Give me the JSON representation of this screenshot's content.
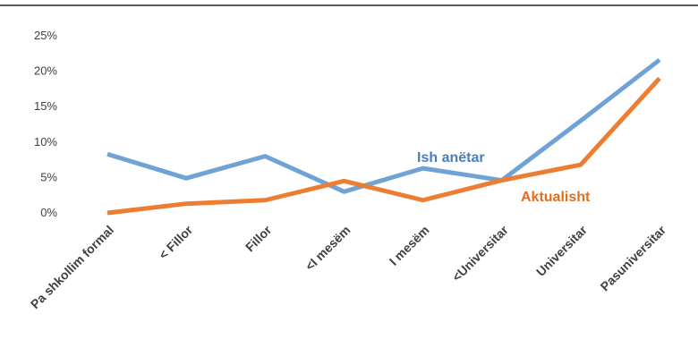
{
  "chart_data": {
    "type": "line",
    "title": "",
    "xlabel": "",
    "ylabel": "",
    "categories": [
      "Pa shkollim formal",
      "< Fillor",
      "Fillor",
      "<I mesëm",
      "I mesëm",
      "<Universitar",
      "Universitar",
      "Pasuniversitar"
    ],
    "ylim": [
      0,
      25
    ],
    "yticks": [
      0,
      5,
      10,
      15,
      20,
      25
    ],
    "ytick_labels": [
      "0%",
      "5%",
      "10%",
      "15%",
      "20%",
      "25%"
    ],
    "grid": false,
    "series": [
      {
        "name": "Ish anëtar",
        "color": "#6FA3D6",
        "label_color": "#4A7EBB",
        "values": [
          8.3,
          4.9,
          8.0,
          3.0,
          6.3,
          4.6,
          13.0,
          21.6
        ]
      },
      {
        "name": "Aktualisht",
        "color": "#ED7D31",
        "label_color": "#E07020",
        "values": [
          0.0,
          1.3,
          1.8,
          4.5,
          1.8,
          4.6,
          6.8,
          19.0
        ]
      }
    ]
  }
}
